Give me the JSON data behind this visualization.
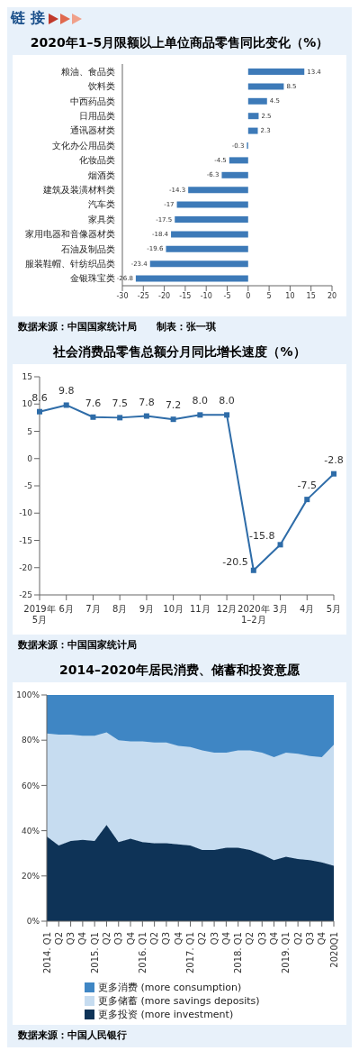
{
  "chart_data": [
    {
      "type": "other",
      "title": "链 接"
    },
    {
      "type": "bar",
      "title": "2020年1–5月限额以上单位商品零售同比变化（%）",
      "orientation": "horizontal",
      "categories": [
        "粮油、食品类",
        "饮料类",
        "中西药品类",
        "日用品类",
        "通讯器材类",
        "文化办公用品类",
        "化妆品类",
        "烟酒类",
        "建筑及装潢材料类",
        "汽车类",
        "家具类",
        "家用电器和音像器材类",
        "石油及制品类",
        "服装鞋帽、针纺织品类",
        "金银珠宝类"
      ],
      "values": [
        13.4,
        8.5,
        4.5,
        2.5,
        2.3,
        -0.3,
        -4.5,
        -6.3,
        -14.3,
        -17,
        -17.5,
        -18.4,
        -19.6,
        -23.4,
        -26.8
      ],
      "color": "#3d7ab8",
      "xlim": [
        -30,
        20
      ],
      "xticks": [
        -30,
        -25,
        -20,
        -15,
        -10,
        -5,
        0,
        5,
        10,
        15,
        20
      ],
      "data_labels": true,
      "annotations": [
        "数据来源：中国国家统计局　　制表：张一琪"
      ]
    },
    {
      "type": "line",
      "title": "社会消费品零售总额分月同比增长速度（%）",
      "categories": [
        "2019年\n5月",
        "6月",
        "7月",
        "8月",
        "9月",
        "10月",
        "11月",
        "12月",
        "2020年\n1–2月",
        "3月",
        "4月",
        "5月"
      ],
      "values": [
        8.6,
        9.8,
        7.6,
        7.5,
        7.8,
        7.2,
        8.0,
        8.0,
        -20.5,
        -15.8,
        -7.5,
        -2.8
      ],
      "value_labels": [
        "8.6",
        "9.8",
        "7.6",
        "7.5",
        "7.8",
        "7.2",
        "8.0",
        "8.0",
        "-20.5",
        "-15.8",
        "-7.5",
        "-2.8"
      ],
      "color": "#2e6ca8",
      "marker": "square",
      "ylim": [
        -25,
        15
      ],
      "yticks": [
        -25,
        -20,
        -15,
        -10,
        -5,
        0,
        5,
        10,
        15
      ],
      "annotations": [
        "数据来源：中国国家统计局"
      ]
    },
    {
      "type": "area",
      "title": "2014–2020年居民消费、储蓄和投资意愿",
      "stacked": true,
      "legend": "bottom",
      "categories": [
        "2014. Q1",
        "Q2",
        "Q3",
        "Q4",
        "2015. Q1",
        "Q2",
        "Q3",
        "Q4",
        "2016. Q1",
        "Q2",
        "Q3",
        "Q4",
        "2017. Q1",
        "Q2",
        "Q3",
        "Q4",
        "2018. Q1",
        "Q2",
        "Q3",
        "Q4",
        "2019. Q1",
        "Q2",
        "Q3",
        "Q4",
        "2020Q1"
      ],
      "series": [
        {
          "name": "更多投资 (more investment)",
          "color": "#0e3357",
          "values": [
            37.5,
            33.5,
            35.5,
            36,
            35.5,
            42.5,
            35,
            36.5,
            35,
            34.5,
            34.5,
            34,
            33.5,
            31.5,
            31.5,
            32.5,
            32.5,
            31.5,
            29.5,
            27,
            28.5,
            27.5,
            27,
            26,
            24.5
          ]
        },
        {
          "name": "更多储蓄 (more savings deposits)",
          "color": "#c6dcf0",
          "values": [
            45.5,
            49,
            47,
            46,
            46.5,
            41,
            45,
            43,
            44.5,
            44.5,
            44.5,
            43.5,
            43.5,
            44,
            43,
            42,
            43,
            44,
            45,
            45.5,
            46,
            46.5,
            46,
            46.5,
            53.5
          ]
        },
        {
          "name": "更多消费 (more consumption)",
          "color": "#3f86c4",
          "values": [
            17,
            17.5,
            17.5,
            18,
            18,
            16.5,
            20,
            20.5,
            20.5,
            21,
            21,
            22.5,
            23,
            24.5,
            25.5,
            25.5,
            24.5,
            24.5,
            25.5,
            27.5,
            25.5,
            26,
            27,
            27.5,
            22
          ]
        }
      ],
      "ylim": [
        0,
        100
      ],
      "yticks": [
        {
          "value": 0,
          "label": "0%"
        },
        {
          "value": 20,
          "label": "20%"
        },
        {
          "value": 40,
          "label": "40%"
        },
        {
          "value": 60,
          "label": "60%"
        },
        {
          "value": 80,
          "label": "80%"
        },
        {
          "value": 100,
          "label": "100%"
        }
      ],
      "annotations": [
        "数据来源：中国人民银行"
      ]
    }
  ]
}
